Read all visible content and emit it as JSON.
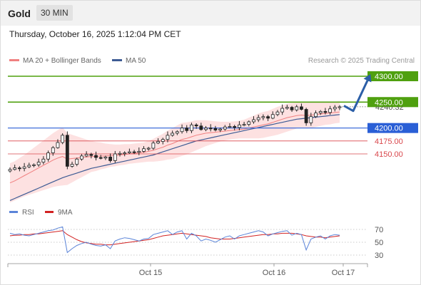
{
  "header": {
    "symbol": "Gold",
    "timeframe": "30 MIN"
  },
  "timestamp": "Thursday, October 16, 2025 1:12:04 PM CET",
  "legend": {
    "bollinger": "MA 20 + Bollinger Bands",
    "ma50": "MA 50",
    "credit": "Research © 2025 Trading Central"
  },
  "rsi_legend": {
    "rsi": "RSI",
    "ma": "9MA"
  },
  "colors": {
    "resistance": "#4fa00f",
    "support_primary": "#2a5fd6",
    "support": "#d9474c",
    "candle": "#222222",
    "bollinger_fill": "#fcdada",
    "bollinger_mid": "#f08080",
    "ma50": "#3d5b94",
    "rsi": "#5b84d8",
    "rsi_ma": "#d22222",
    "arrow": "#2b5ea7"
  },
  "chart_data": [
    {
      "type": "candlestick",
      "title": "Gold",
      "x_ticks": [
        "Oct 15",
        "Oct 16",
        "Oct 17"
      ],
      "levels": [
        {
          "label": "4300.00",
          "value": 4300.0,
          "kind": "resistance"
        },
        {
          "label": "4250.00",
          "value": 4250.0,
          "kind": "resistance"
        },
        {
          "label": "4200.00",
          "value": 4200.0,
          "kind": "support_primary"
        },
        {
          "label": "4175.00",
          "value": 4175.0,
          "kind": "support"
        },
        {
          "label": "4150.00",
          "value": 4150.0,
          "kind": "support"
        }
      ],
      "last_price_label": "4240.32",
      "forecast_path": [
        {
          "point": "current",
          "value": 4243
        },
        {
          "point": "pullback",
          "value": 4233
        },
        {
          "point": "target",
          "value": 4300
        }
      ],
      "close_series": [
        4120,
        4123,
        4122,
        4125,
        4128,
        4129,
        4134,
        4140,
        4152,
        4162,
        4172,
        4186,
        4126,
        4130,
        4140,
        4146,
        4149,
        4147,
        4143,
        4142,
        4144,
        4137,
        4150,
        4151,
        4152,
        4154,
        4153,
        4155,
        4160,
        4161,
        4171,
        4174,
        4178,
        4186,
        4190,
        4193,
        4200,
        4195,
        4206,
        4204,
        4197,
        4200,
        4199,
        4196,
        4198,
        4202,
        4203,
        4201,
        4206,
        4207,
        4212,
        4216,
        4220,
        4222,
        4219,
        4226,
        4231,
        4238,
        4240,
        4235,
        4241,
        4236,
        4210,
        4222,
        4229,
        4232,
        4230,
        4237,
        4240,
        4241
      ],
      "bb_mid": [
        4094,
        4098,
        4103,
        4108,
        4113,
        4118,
        4123,
        4128,
        4133,
        4138,
        4142,
        4145,
        4140,
        4141,
        4142,
        4143,
        4144,
        4145,
        4145,
        4146,
        4146,
        4147,
        4147,
        4148,
        4149,
        4150,
        4151,
        4152,
        4153,
        4155,
        4157,
        4160,
        4163,
        4167,
        4170,
        4174,
        4178,
        4180,
        4183,
        4186,
        4188,
        4190,
        4191,
        4192,
        4193,
        4194,
        4195,
        4196,
        4197,
        4198,
        4200,
        4202,
        4204,
        4206,
        4208,
        4211,
        4214,
        4217,
        4220,
        4222,
        4224,
        4225,
        4224,
        4225,
        4226,
        4227,
        4228,
        4229,
        4230,
        4231
      ],
      "bb_width": [
        38,
        38,
        39,
        40,
        42,
        44,
        46,
        48,
        50,
        52,
        54,
        56,
        50,
        46,
        42,
        38,
        34,
        30,
        28,
        26,
        24,
        22,
        21,
        20,
        20,
        19,
        19,
        19,
        19,
        20,
        22,
        24,
        26,
        28,
        30,
        31,
        32,
        31,
        30,
        29,
        27,
        25,
        23,
        21,
        19,
        18,
        17,
        17,
        17,
        18,
        20,
        22,
        24,
        25,
        25,
        26,
        27,
        27,
        27,
        26,
        25,
        24,
        25,
        25,
        24,
        23,
        22,
        22,
        21,
        21
      ],
      "ma50": [
        4060,
        4064,
        4068,
        4072,
        4076,
        4080,
        4084,
        4088,
        4092,
        4096,
        4100,
        4104,
        4107,
        4110,
        4113,
        4116,
        4119,
        4122,
        4124,
        4126,
        4128,
        4130,
        4132,
        4134,
        4136,
        4138,
        4140,
        4142,
        4144,
        4146,
        4148,
        4151,
        4154,
        4157,
        4160,
        4163,
        4166,
        4169,
        4172,
        4175,
        4177,
        4179,
        4181,
        4183,
        4185,
        4187,
        4189,
        4191,
        4193,
        4195,
        4197,
        4199,
        4201,
        4203,
        4205,
        4207,
        4209,
        4211,
        4213,
        4215,
        4217,
        4218,
        4219,
        4220,
        4221,
        4222,
        4223,
        4224,
        4225,
        4226
      ]
    },
    {
      "type": "line",
      "title": "RSI",
      "y_ticks": [
        30,
        50,
        70
      ],
      "ylim": [
        20,
        85
      ],
      "series": [
        {
          "name": "RSI",
          "values": [
            64,
            62,
            63,
            61,
            60,
            62,
            64,
            66,
            68,
            69,
            72,
            74,
            34,
            40,
            45,
            48,
            50,
            47,
            45,
            44,
            46,
            40,
            52,
            55,
            57,
            56,
            54,
            52,
            55,
            56,
            62,
            64,
            66,
            68,
            62,
            66,
            68,
            55,
            64,
            60,
            52,
            55,
            53,
            50,
            54,
            58,
            60,
            55,
            60,
            62,
            64,
            66,
            68,
            66,
            60,
            63,
            65,
            67,
            68,
            61,
            64,
            62,
            38,
            55,
            58,
            60,
            55,
            60,
            62,
            61
          ]
        },
        {
          "name": "9MA",
          "values": [
            60,
            61,
            61,
            62,
            62,
            63,
            63,
            64,
            65,
            66,
            67,
            68,
            62,
            58,
            54,
            51,
            49,
            48,
            47,
            47,
            46,
            46,
            47,
            48,
            49,
            50,
            51,
            52,
            53,
            54,
            56,
            58,
            60,
            61,
            62,
            63,
            64,
            63,
            62,
            61,
            60,
            59,
            57,
            56,
            55,
            55,
            55,
            56,
            57,
            58,
            59,
            60,
            61,
            62,
            62,
            63,
            63,
            64,
            64,
            64,
            63,
            62,
            60,
            59,
            58,
            58,
            57,
            58,
            59,
            60
          ]
        }
      ]
    }
  ]
}
